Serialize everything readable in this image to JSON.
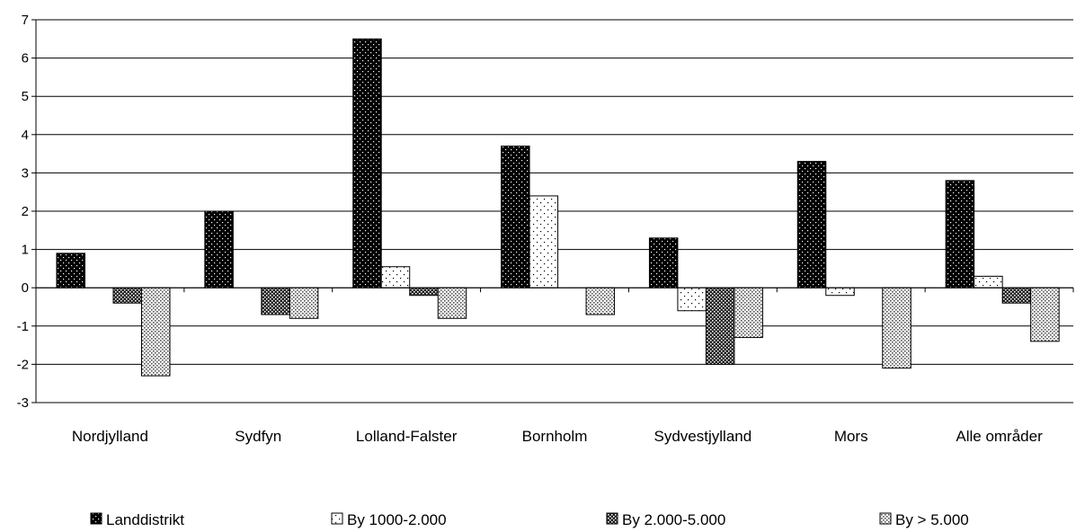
{
  "chart_data": {
    "type": "bar",
    "title": "",
    "xlabel": "",
    "ylabel": "",
    "ylim": [
      -3,
      7
    ],
    "yticks": [
      -3,
      -2,
      -1,
      0,
      1,
      2,
      3,
      4,
      5,
      6,
      7
    ],
    "grid": true,
    "legend_position": "bottom",
    "categories": [
      "Nordjylland",
      "Sydfyn",
      "Lolland-Falster",
      "Bornholm",
      "Sydvestjylland",
      "Mors",
      "Alle områder"
    ],
    "series": [
      {
        "name": "Landdistrikt",
        "pattern": "dark-dots",
        "values": [
          0.9,
          2.0,
          6.5,
          3.7,
          1.3,
          3.3,
          2.8
        ]
      },
      {
        "name": "By 1000-2.000",
        "pattern": "white-dots",
        "values": [
          0,
          0,
          0.55,
          2.4,
          -0.6,
          -0.2,
          0.3
        ]
      },
      {
        "name": "By 2.000-5.000",
        "pattern": "dark-checker",
        "values": [
          -0.4,
          -0.7,
          -0.2,
          0,
          -2.0,
          0,
          -0.4
        ]
      },
      {
        "name": "By > 5.000",
        "pattern": "light-dots",
        "values": [
          -2.3,
          -0.8,
          -0.8,
          -0.7,
          -1.3,
          -2.1,
          -1.4
        ]
      }
    ]
  }
}
